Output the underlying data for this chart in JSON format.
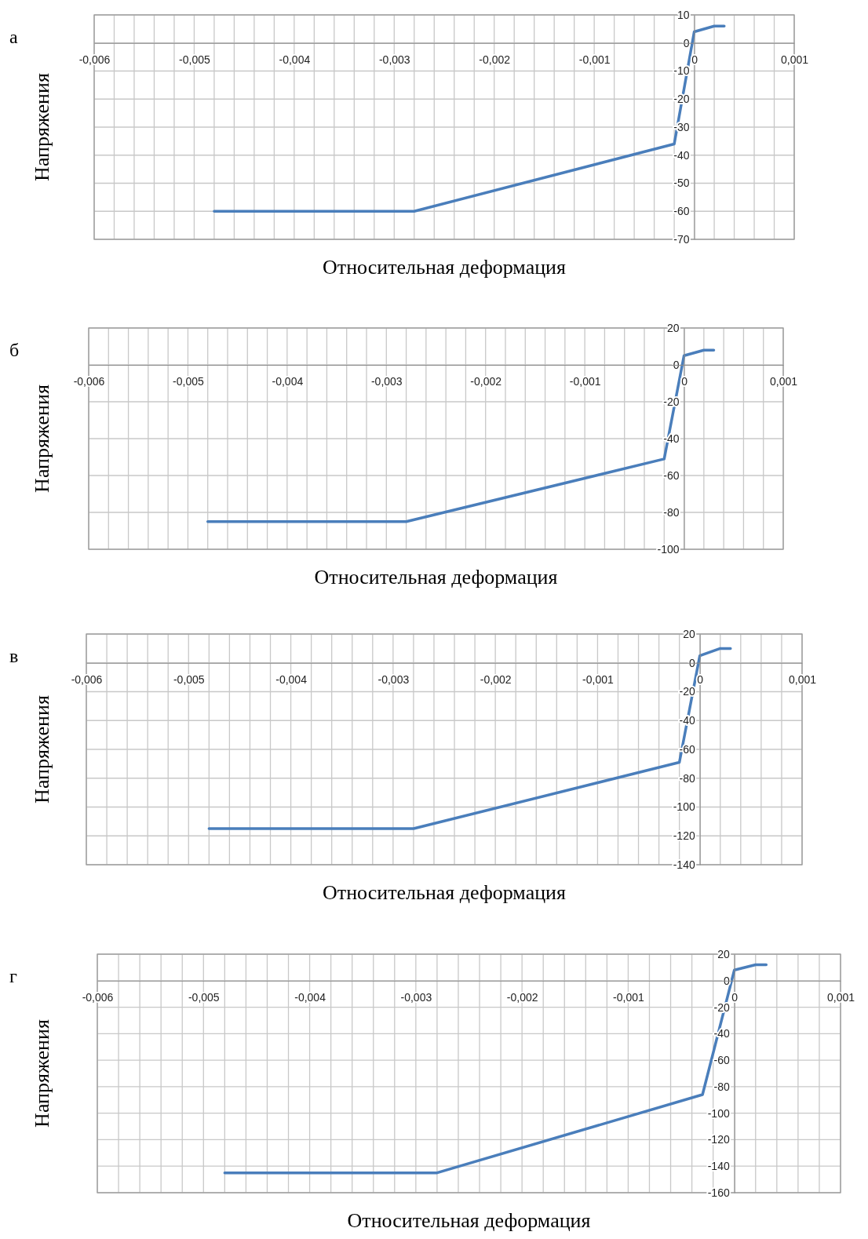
{
  "chart_data": [
    {
      "type": "line",
      "annotations": [
        "а"
      ],
      "xlabel": "Относительная деформация",
      "ylabel": "Напряжения",
      "color": "#4a7ebb",
      "grid": true,
      "x": [
        -0.0048,
        -0.0028,
        -0.0002,
        0,
        0.0002,
        0.0003
      ],
      "values": [
        -60,
        -60,
        -36,
        4,
        6,
        6
      ],
      "xlim": [
        -0.006,
        0.001
      ],
      "ylim": [
        -70,
        10
      ],
      "yticks": [
        -70,
        -60,
        -50,
        -40,
        -30,
        -20,
        -10,
        0,
        10
      ],
      "xticks": [
        {
          "value": -0.006,
          "label": "-0,006"
        },
        {
          "value": -0.0058,
          "label": null
        },
        {
          "value": -0.0056,
          "label": null
        },
        {
          "value": -0.0054,
          "label": null
        },
        {
          "value": -0.0052,
          "label": null
        },
        {
          "value": -0.005,
          "label": "-0,005"
        },
        {
          "value": -0.0048,
          "label": null
        },
        {
          "value": -0.0046,
          "label": null
        },
        {
          "value": -0.0044,
          "label": null
        },
        {
          "value": -0.0042,
          "label": null
        },
        {
          "value": -0.004,
          "label": "-0,004"
        },
        {
          "value": -0.0038,
          "label": null
        },
        {
          "value": -0.0036,
          "label": null
        },
        {
          "value": -0.0034,
          "label": null
        },
        {
          "value": -0.0032,
          "label": null
        },
        {
          "value": -0.003,
          "label": "-0,003"
        },
        {
          "value": -0.0028,
          "label": null
        },
        {
          "value": -0.0026,
          "label": null
        },
        {
          "value": -0.0024,
          "label": null
        },
        {
          "value": -0.0022,
          "label": null
        },
        {
          "value": -0.002,
          "label": "-0,002"
        },
        {
          "value": -0.0018,
          "label": null
        },
        {
          "value": -0.0016,
          "label": null
        },
        {
          "value": -0.0014,
          "label": null
        },
        {
          "value": -0.0012,
          "label": null
        },
        {
          "value": -0.001,
          "label": "-0,001"
        },
        {
          "value": -0.0008,
          "label": null
        },
        {
          "value": -0.0006,
          "label": null
        },
        {
          "value": -0.0004,
          "label": null
        },
        {
          "value": -0.0002,
          "label": null
        },
        {
          "value": 0,
          "label": "0"
        },
        {
          "value": 0.0002,
          "label": null
        },
        {
          "value": 0.0004,
          "label": null
        },
        {
          "value": 0.0006,
          "label": null
        },
        {
          "value": 0.0008,
          "label": null
        },
        {
          "value": 0.001,
          "label": "0,001"
        }
      ]
    },
    {
      "type": "line",
      "annotations": [
        "б"
      ],
      "xlabel": "Относительная деформация",
      "ylabel": "Напряжения",
      "color": "#4a7ebb",
      "grid": true,
      "x": [
        -0.0048,
        -0.0028,
        -0.0002,
        0,
        0.0002,
        0.0003
      ],
      "values": [
        -85,
        -85,
        -51,
        5,
        8,
        8
      ],
      "xlim": [
        -0.006,
        0.001
      ],
      "ylim": [
        -100,
        20
      ],
      "yticks": [
        -100,
        -80,
        -60,
        -40,
        -20,
        0,
        20
      ],
      "xticks": [
        {
          "value": -0.006,
          "label": "-0,006"
        },
        {
          "value": -0.0058,
          "label": null
        },
        {
          "value": -0.0056,
          "label": null
        },
        {
          "value": -0.0054,
          "label": null
        },
        {
          "value": -0.0052,
          "label": null
        },
        {
          "value": -0.005,
          "label": "-0,005"
        },
        {
          "value": -0.0048,
          "label": null
        },
        {
          "value": -0.0046,
          "label": null
        },
        {
          "value": -0.0044,
          "label": null
        },
        {
          "value": -0.0042,
          "label": null
        },
        {
          "value": -0.004,
          "label": "-0,004"
        },
        {
          "value": -0.0038,
          "label": null
        },
        {
          "value": -0.0036,
          "label": null
        },
        {
          "value": -0.0034,
          "label": null
        },
        {
          "value": -0.0032,
          "label": null
        },
        {
          "value": -0.003,
          "label": "-0,003"
        },
        {
          "value": -0.0028,
          "label": null
        },
        {
          "value": -0.0026,
          "label": null
        },
        {
          "value": -0.0024,
          "label": null
        },
        {
          "value": -0.0022,
          "label": null
        },
        {
          "value": -0.002,
          "label": "-0,002"
        },
        {
          "value": -0.0018,
          "label": null
        },
        {
          "value": -0.0016,
          "label": null
        },
        {
          "value": -0.0014,
          "label": null
        },
        {
          "value": -0.0012,
          "label": null
        },
        {
          "value": -0.001,
          "label": "-0,001"
        },
        {
          "value": -0.0008,
          "label": null
        },
        {
          "value": -0.0006,
          "label": null
        },
        {
          "value": -0.0004,
          "label": null
        },
        {
          "value": -0.0002,
          "label": null
        },
        {
          "value": 0,
          "label": "0"
        },
        {
          "value": 0.0002,
          "label": null
        },
        {
          "value": 0.0004,
          "label": null
        },
        {
          "value": 0.0006,
          "label": null
        },
        {
          "value": 0.0008,
          "label": null
        },
        {
          "value": 0.001,
          "label": "0,001"
        }
      ]
    },
    {
      "type": "line",
      "annotations": [
        "в"
      ],
      "xlabel": "Относительная деформация",
      "ylabel": "Напряжения",
      "color": "#4a7ebb",
      "grid": true,
      "x": [
        -0.0048,
        -0.0028,
        -0.0002,
        0,
        0.0002,
        0.0003
      ],
      "values": [
        -115,
        -115,
        -69,
        5,
        10,
        10
      ],
      "xlim": [
        -0.006,
        0.001
      ],
      "ylim": [
        -140,
        20
      ],
      "yticks": [
        -140,
        -120,
        -100,
        -80,
        -60,
        -40,
        -20,
        0,
        20
      ],
      "xticks": [
        {
          "value": -0.006,
          "label": "-0,006"
        },
        {
          "value": -0.0058,
          "label": null
        },
        {
          "value": -0.0056,
          "label": null
        },
        {
          "value": -0.0054,
          "label": null
        },
        {
          "value": -0.0052,
          "label": null
        },
        {
          "value": -0.005,
          "label": "-0,005"
        },
        {
          "value": -0.0048,
          "label": null
        },
        {
          "value": -0.0046,
          "label": null
        },
        {
          "value": -0.0044,
          "label": null
        },
        {
          "value": -0.0042,
          "label": null
        },
        {
          "value": -0.004,
          "label": "-0,004"
        },
        {
          "value": -0.0038,
          "label": null
        },
        {
          "value": -0.0036,
          "label": null
        },
        {
          "value": -0.0034,
          "label": null
        },
        {
          "value": -0.0032,
          "label": null
        },
        {
          "value": -0.003,
          "label": "-0,003"
        },
        {
          "value": -0.0028,
          "label": null
        },
        {
          "value": -0.0026,
          "label": null
        },
        {
          "value": -0.0024,
          "label": null
        },
        {
          "value": -0.0022,
          "label": null
        },
        {
          "value": -0.002,
          "label": "-0,002"
        },
        {
          "value": -0.0018,
          "label": null
        },
        {
          "value": -0.0016,
          "label": null
        },
        {
          "value": -0.0014,
          "label": null
        },
        {
          "value": -0.0012,
          "label": null
        },
        {
          "value": -0.001,
          "label": "-0,001"
        },
        {
          "value": -0.0008,
          "label": null
        },
        {
          "value": -0.0006,
          "label": null
        },
        {
          "value": -0.0004,
          "label": null
        },
        {
          "value": -0.0002,
          "label": null
        },
        {
          "value": 0,
          "label": "0"
        },
        {
          "value": 0.0002,
          "label": null
        },
        {
          "value": 0.0004,
          "label": null
        },
        {
          "value": 0.0006,
          "label": null
        },
        {
          "value": 0.0008,
          "label": null
        },
        {
          "value": 0.001,
          "label": "0,001"
        }
      ]
    },
    {
      "type": "line",
      "annotations": [
        "г"
      ],
      "xlabel": "Относительная деформация",
      "ylabel": "Напряжения",
      "color": "#4a7ebb",
      "grid": true,
      "x": [
        -0.0048,
        -0.0028,
        -0.0003,
        0,
        0.0002,
        0.0003
      ],
      "values": [
        -145,
        -145,
        -86,
        8,
        12,
        12
      ],
      "xlim": [
        -0.006,
        0.001
      ],
      "ylim": [
        -160,
        20
      ],
      "yticks": [
        -160,
        -140,
        -120,
        -100,
        -80,
        -60,
        -40,
        -20,
        0,
        20
      ],
      "xticks": [
        {
          "value": -0.006,
          "label": "-0,006"
        },
        {
          "value": -0.0058,
          "label": null
        },
        {
          "value": -0.0056,
          "label": null
        },
        {
          "value": -0.0054,
          "label": null
        },
        {
          "value": -0.0052,
          "label": null
        },
        {
          "value": -0.005,
          "label": "-0,005"
        },
        {
          "value": -0.0048,
          "label": null
        },
        {
          "value": -0.0046,
          "label": null
        },
        {
          "value": -0.0044,
          "label": null
        },
        {
          "value": -0.0042,
          "label": null
        },
        {
          "value": -0.004,
          "label": "-0,004"
        },
        {
          "value": -0.0038,
          "label": null
        },
        {
          "value": -0.0036,
          "label": null
        },
        {
          "value": -0.0034,
          "label": null
        },
        {
          "value": -0.0032,
          "label": null
        },
        {
          "value": -0.003,
          "label": "-0,003"
        },
        {
          "value": -0.0028,
          "label": null
        },
        {
          "value": -0.0026,
          "label": null
        },
        {
          "value": -0.0024,
          "label": null
        },
        {
          "value": -0.0022,
          "label": null
        },
        {
          "value": -0.002,
          "label": "-0,002"
        },
        {
          "value": -0.0018,
          "label": null
        },
        {
          "value": -0.0016,
          "label": null
        },
        {
          "value": -0.0014,
          "label": null
        },
        {
          "value": -0.0012,
          "label": null
        },
        {
          "value": -0.001,
          "label": "-0,001"
        },
        {
          "value": -0.0008,
          "label": null
        },
        {
          "value": -0.0006,
          "label": null
        },
        {
          "value": -0.0004,
          "label": null
        },
        {
          "value": -0.0002,
          "label": null
        },
        {
          "value": 0,
          "label": "0"
        },
        {
          "value": 0.0002,
          "label": null
        },
        {
          "value": 0.0004,
          "label": null
        },
        {
          "value": 0.0006,
          "label": null
        },
        {
          "value": 0.0008,
          "label": null
        },
        {
          "value": 0.001,
          "label": "0,001"
        }
      ]
    }
  ]
}
